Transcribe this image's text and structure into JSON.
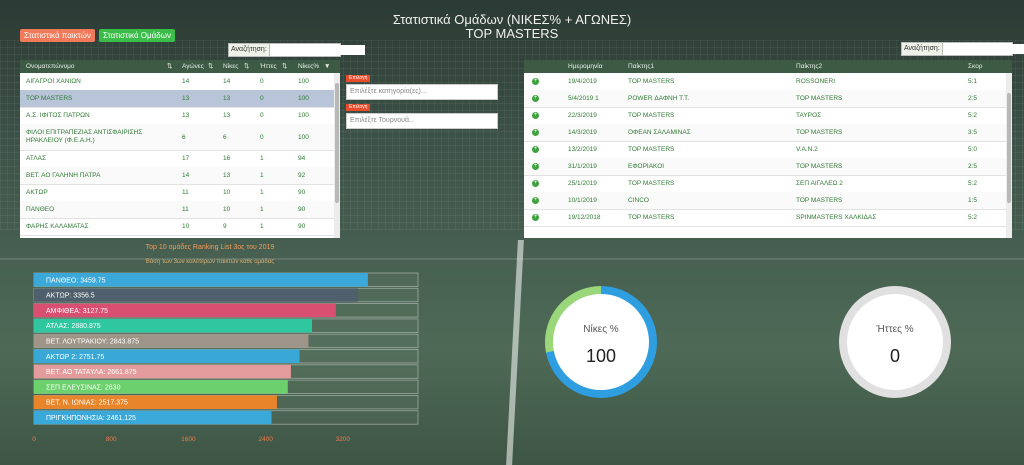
{
  "header": {
    "title": "Στατιστικά Ομάδων (ΝΙΚΕΣ% + ΑΓΩΝΕΣ)",
    "subtitle": "TOP MASTERS"
  },
  "tabs": {
    "players": "Στατιστικά παικτών",
    "teams": "Στατιστικά Ομάδων"
  },
  "search_left": {
    "label": "Αναζήτηση:",
    "value": ""
  },
  "search_right": {
    "label": "Αναζήτηση:",
    "value": ""
  },
  "teams_table": {
    "headers": [
      "Ονοματεπώνυμο",
      "Αγώνες",
      "Νίκες",
      "Ήττες",
      "Νίκες%"
    ],
    "rows": [
      [
        "ΑΙΓΑΓΡΟΙ ΧΑΝΙΩΝ",
        "14",
        "14",
        "0",
        "100"
      ],
      [
        "TOP MASTERS",
        "13",
        "13",
        "0",
        "100"
      ],
      [
        "Α.Σ. ΙΦΙΤΟΣ ΠΑΤΡΩΝ",
        "13",
        "13",
        "0",
        "100"
      ],
      [
        "ΦΙΛΟΙ ΕΠΙΤΡΑΠΕΖΙΑΣ ΑΝΤΙΣΦΑΙΡΙΣΗΣ ΗΡΑΚΛΕΙΟΥ (Φ.Ε.Α.Η.)",
        "6",
        "6",
        "0",
        "100"
      ],
      [
        "ΑΤΛΑΣ",
        "17",
        "16",
        "1",
        "94"
      ],
      [
        "ΒΕΤ. ΑΟ ΓΑΛΗΝΗ ΠΑΤΡΑ",
        "14",
        "13",
        "1",
        "92"
      ],
      [
        "ΑΚΤΩΡ",
        "11",
        "10",
        "1",
        "90"
      ],
      [
        "ΠΑΝΘΕΟ",
        "11",
        "10",
        "1",
        "90"
      ],
      [
        "ΦΑΡΗΣ ΚΑΛΑΜΑΤΑΣ",
        "10",
        "9",
        "1",
        "90"
      ]
    ],
    "selected_row": 1
  },
  "filters": {
    "category": {
      "tag": "Επιλογή",
      "placeholder": "Επιλέξτε κατηγορία(ες)..."
    },
    "tournament": {
      "tag": "Επιλογή",
      "placeholder": "Επιλέξτε Τουρνουά..."
    }
  },
  "matches_table": {
    "headers": [
      "Ημερομηνία",
      "Παίκτης1",
      "Παίκτης2",
      "Σκορ"
    ],
    "rows": [
      [
        "19/4/2019",
        "TOP MASTERS",
        "ROSSONERI",
        "5:1"
      ],
      [
        "5/4/2019 1",
        "POWER ΔΑΦΝΗ Τ.Τ.",
        "TOP MASTERS",
        "2:5"
      ],
      [
        "22/3/2019",
        "TOP MASTERS",
        "ΤΑΥΡΟΣ",
        "5:2"
      ],
      [
        "14/3/2019",
        "ΟΦΕΑΝ ΣΑΛΑΜΙΝΑΣ",
        "TOP MASTERS",
        "3:5"
      ],
      [
        "13/2/2019",
        "TOP MASTERS",
        "V.A.N.2",
        "5:0"
      ],
      [
        "31/1/2019",
        "ΕΦΟΡΙΑΚΟΙ",
        "TOP MASTERS",
        "2:5"
      ],
      [
        "25/1/2019",
        "TOP MASTERS",
        "ΣΕΠ ΑΙΓΑΛΕΩ 2",
        "5:2"
      ],
      [
        "10/1/2019",
        "CINCO",
        "TOP MASTERS",
        "1:5"
      ],
      [
        "19/12/2018",
        "TOP MASTERS",
        "SPINMASTERS ΧΑΛΚΙΔΑΣ",
        "5:2"
      ]
    ]
  },
  "wins_circle": {
    "label": "Νίκες %",
    "value": "100",
    "percent": 100,
    "color": "#2f9ee0"
  },
  "losses_circle": {
    "label": "Ήττες %",
    "value": "0",
    "percent": 0,
    "color": "#e0e0e0"
  },
  "chart_data": {
    "type": "bar",
    "orientation": "horizontal",
    "title": "Top 10 ομάδες Ranking List 3ος του 2019",
    "subtitle": "Βάση των 3ων καλύτερων παικτών κάθε ομάδας",
    "categories": [
      "ΠΑΝΘΕΟ",
      "ΑΚΤΩΡ",
      "ΑΜΦΙΘΕΑ",
      "ΑΤΛΑΣ",
      "ΒΕΤ. ΛΟΥΤΡΑΚΙΟΥ",
      "ΑΚΤΩΡ 2",
      "ΒΕΤ. ΑΟ ΤΑΤΑΥΛΑ",
      "ΣΕΠ ΕΛΕΥΣΙΝΑΣ",
      "ΒΕΤ. Ν. ΙΩΝΙΑΣ",
      "ΠΡΙΓΚΗΠΟΝΗΣΙΑ"
    ],
    "values": [
      3459.75,
      3356.5,
      3127.75,
      2880.875,
      2843.875,
      2751.75,
      2661.875,
      2630,
      2517.375,
      2461.125
    ],
    "labels": [
      "ΠΑΝΘΕΟ: 3459.75",
      "ΑΚΤΩΡ: 3356.5",
      "ΑΜΦΙΘΕΑ: 3127.75",
      "ΑΤΛΑΣ: 2880.875",
      "ΒΕΤ. ΛΟΥΤΡΑΚΙΟΥ: 2843.875",
      "ΑΚΤΩΡ 2: 2751.75",
      "ΒΕΤ. ΑΟ ΤΑΤΑΥΛΑ: 2661.875",
      "ΣΕΠ ΕΛΕΥΣΙΝΑΣ: 2630",
      "ΒΕΤ. Ν. ΙΩΝΙΑΣ: 2517.375",
      "ΠΡΙΓΚΗΠΟΝΗΣΙΑ: 2461.125"
    ],
    "colors": [
      "#3aa9d9",
      "#4f5f6b",
      "#d94f72",
      "#2fc7a0",
      "#9e9588",
      "#39a8d6",
      "#e49b9b",
      "#6cd16c",
      "#e8852a",
      "#3aa9d9"
    ],
    "xticks": [
      "0",
      "800",
      "1600",
      "2400",
      "3200"
    ],
    "xlim": [
      0,
      4000
    ],
    "grid": false
  }
}
